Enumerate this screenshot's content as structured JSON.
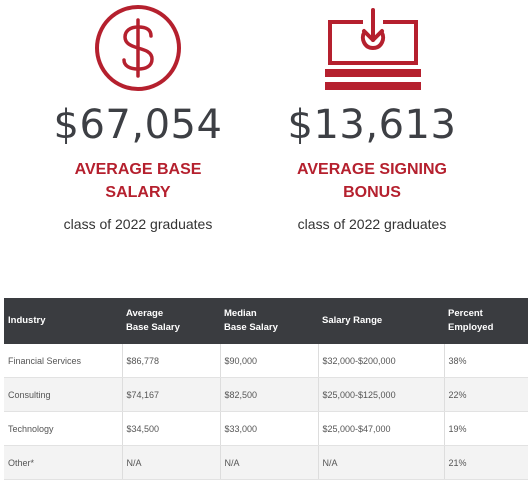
{
  "stats": [
    {
      "icon": "dollar-circle-icon",
      "value": "$67,054",
      "label": "AVERAGE BASE SALARY",
      "caption": "class of 2022 graduates"
    },
    {
      "icon": "signing-bonus-icon",
      "value": "$13,613",
      "label": "AVERAGE SIGNING BONUS",
      "caption": "class of 2022 graduates"
    }
  ],
  "table": {
    "headers": [
      "Industry",
      "Average\nBase Salary",
      "Median\nBase Salary",
      "Salary Range",
      "Percent\nEmployed"
    ],
    "rows": [
      [
        "Financial Services",
        "$86,778",
        "$90,000",
        "$32,000-$200,000",
        "38%"
      ],
      [
        "Consulting",
        "$74,167",
        "$82,500",
        "$25,000-$125,000",
        "22%"
      ],
      [
        "Technology",
        "$34,500",
        "$33,000",
        "$25,000-$47,000",
        "19%"
      ],
      [
        "Other*",
        "N/A",
        "N/A",
        "N/A",
        "21%"
      ]
    ]
  },
  "colors": {
    "accent": "#b5202e",
    "header_bg": "#3a3c40",
    "value_text": "#3d3f44"
  }
}
